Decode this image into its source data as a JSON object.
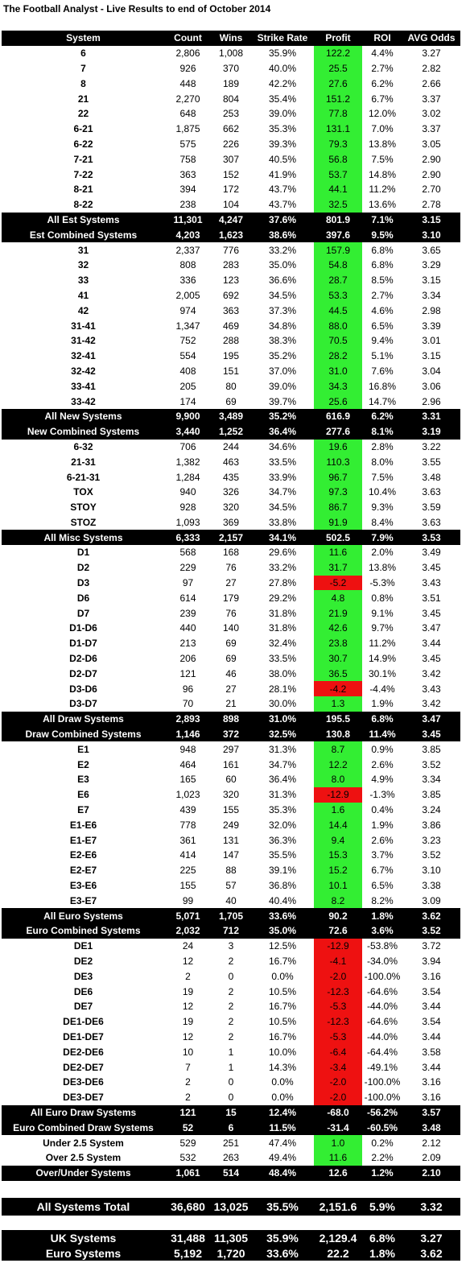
{
  "title": "The Football Analyst - Live Results to end of October 2014",
  "header": [
    "System",
    "Count",
    "Wins",
    "Strike Rate",
    "Profit",
    "ROI",
    "AVG Odds"
  ],
  "sections": [
    {
      "rows": [
        [
          "6",
          "2,806",
          "1,008",
          "35.9%",
          "122.2",
          "4.4%",
          "3.27"
        ],
        [
          "7",
          "926",
          "370",
          "40.0%",
          "25.5",
          "2.7%",
          "2.82"
        ],
        [
          "8",
          "448",
          "189",
          "42.2%",
          "27.6",
          "6.2%",
          "2.66"
        ],
        [
          "21",
          "2,270",
          "804",
          "35.4%",
          "151.2",
          "6.7%",
          "3.37"
        ],
        [
          "22",
          "648",
          "253",
          "39.0%",
          "77.8",
          "12.0%",
          "3.02"
        ],
        [
          "6-21",
          "1,875",
          "662",
          "35.3%",
          "131.1",
          "7.0%",
          "3.37"
        ],
        [
          "6-22",
          "575",
          "226",
          "39.3%",
          "79.3",
          "13.8%",
          "3.05"
        ],
        [
          "7-21",
          "758",
          "307",
          "40.5%",
          "56.8",
          "7.5%",
          "2.90"
        ],
        [
          "7-22",
          "363",
          "152",
          "41.9%",
          "53.7",
          "14.8%",
          "2.90"
        ],
        [
          "8-21",
          "394",
          "172",
          "43.7%",
          "44.1",
          "11.2%",
          "2.70"
        ],
        [
          "8-22",
          "238",
          "104",
          "43.7%",
          "32.5",
          "13.6%",
          "2.78"
        ]
      ],
      "totals": [
        [
          "All Est Systems",
          "11,301",
          "4,247",
          "37.6%",
          "801.9",
          "7.1%",
          "3.15"
        ],
        [
          "Est Combined Systems",
          "4,203",
          "1,623",
          "38.6%",
          "397.6",
          "9.5%",
          "3.10"
        ]
      ]
    },
    {
      "rows": [
        [
          "31",
          "2,337",
          "776",
          "33.2%",
          "157.9",
          "6.8%",
          "3.65"
        ],
        [
          "32",
          "808",
          "283",
          "35.0%",
          "54.8",
          "6.8%",
          "3.29"
        ],
        [
          "33",
          "336",
          "123",
          "36.6%",
          "28.7",
          "8.5%",
          "3.15"
        ],
        [
          "41",
          "2,005",
          "692",
          "34.5%",
          "53.3",
          "2.7%",
          "3.34"
        ],
        [
          "42",
          "974",
          "363",
          "37.3%",
          "44.5",
          "4.6%",
          "2.98"
        ],
        [
          "31-41",
          "1,347",
          "469",
          "34.8%",
          "88.0",
          "6.5%",
          "3.39"
        ],
        [
          "31-42",
          "752",
          "288",
          "38.3%",
          "70.5",
          "9.4%",
          "3.01"
        ],
        [
          "32-41",
          "554",
          "195",
          "35.2%",
          "28.2",
          "5.1%",
          "3.15"
        ],
        [
          "32-42",
          "408",
          "151",
          "37.0%",
          "31.0",
          "7.6%",
          "3.04"
        ],
        [
          "33-41",
          "205",
          "80",
          "39.0%",
          "34.3",
          "16.8%",
          "3.06"
        ],
        [
          "33-42",
          "174",
          "69",
          "39.7%",
          "25.6",
          "14.7%",
          "2.96"
        ]
      ],
      "totals": [
        [
          "All New Systems",
          "9,900",
          "3,489",
          "35.2%",
          "616.9",
          "6.2%",
          "3.31"
        ],
        [
          "New Combined Systems",
          "3,440",
          "1,252",
          "36.4%",
          "277.6",
          "8.1%",
          "3.19"
        ]
      ]
    },
    {
      "rows": [
        [
          "6-32",
          "706",
          "244",
          "34.6%",
          "19.6",
          "2.8%",
          "3.22"
        ],
        [
          "21-31",
          "1,382",
          "463",
          "33.5%",
          "110.3",
          "8.0%",
          "3.55"
        ],
        [
          "6-21-31",
          "1,284",
          "435",
          "33.9%",
          "96.7",
          "7.5%",
          "3.48"
        ],
        [
          "TOX",
          "940",
          "326",
          "34.7%",
          "97.3",
          "10.4%",
          "3.63"
        ],
        [
          "STOY",
          "928",
          "320",
          "34.5%",
          "86.7",
          "9.3%",
          "3.59"
        ],
        [
          "STOZ",
          "1,093",
          "369",
          "33.8%",
          "91.9",
          "8.4%",
          "3.63"
        ]
      ],
      "totals": [
        [
          "All Misc Systems",
          "6,333",
          "2,157",
          "34.1%",
          "502.5",
          "7.9%",
          "3.53"
        ]
      ]
    },
    {
      "rows": [
        [
          "D1",
          "568",
          "168",
          "29.6%",
          "11.6",
          "2.0%",
          "3.49"
        ],
        [
          "D2",
          "229",
          "76",
          "33.2%",
          "31.7",
          "13.8%",
          "3.45"
        ],
        [
          "D3",
          "97",
          "27",
          "27.8%",
          "-5.2",
          "-5.3%",
          "3.43"
        ],
        [
          "D6",
          "614",
          "179",
          "29.2%",
          "4.8",
          "0.8%",
          "3.51"
        ],
        [
          "D7",
          "239",
          "76",
          "31.8%",
          "21.9",
          "9.1%",
          "3.45"
        ],
        [
          "D1-D6",
          "440",
          "140",
          "31.8%",
          "42.6",
          "9.7%",
          "3.47"
        ],
        [
          "D1-D7",
          "213",
          "69",
          "32.4%",
          "23.8",
          "11.2%",
          "3.44"
        ],
        [
          "D2-D6",
          "206",
          "69",
          "33.5%",
          "30.7",
          "14.9%",
          "3.45"
        ],
        [
          "D2-D7",
          "121",
          "46",
          "38.0%",
          "36.5",
          "30.1%",
          "3.42"
        ],
        [
          "D3-D6",
          "96",
          "27",
          "28.1%",
          "-4.2",
          "-4.4%",
          "3.43"
        ],
        [
          "D3-D7",
          "70",
          "21",
          "30.0%",
          "1.3",
          "1.9%",
          "3.42"
        ]
      ],
      "totals": [
        [
          "All Draw Systems",
          "2,893",
          "898",
          "31.0%",
          "195.5",
          "6.8%",
          "3.47"
        ],
        [
          "Draw Combined Systems",
          "1,146",
          "372",
          "32.5%",
          "130.8",
          "11.4%",
          "3.45"
        ]
      ]
    },
    {
      "rows": [
        [
          "E1",
          "948",
          "297",
          "31.3%",
          "8.7",
          "0.9%",
          "3.85"
        ],
        [
          "E2",
          "464",
          "161",
          "34.7%",
          "12.2",
          "2.6%",
          "3.52"
        ],
        [
          "E3",
          "165",
          "60",
          "36.4%",
          "8.0",
          "4.9%",
          "3.34"
        ],
        [
          "E6",
          "1,023",
          "320",
          "31.3%",
          "-12.9",
          "-1.3%",
          "3.85"
        ],
        [
          "E7",
          "439",
          "155",
          "35.3%",
          "1.6",
          "0.4%",
          "3.24"
        ],
        [
          "E1-E6",
          "778",
          "249",
          "32.0%",
          "14.4",
          "1.9%",
          "3.86"
        ],
        [
          "E1-E7",
          "361",
          "131",
          "36.3%",
          "9.4",
          "2.6%",
          "3.23"
        ],
        [
          "E2-E6",
          "414",
          "147",
          "35.5%",
          "15.3",
          "3.7%",
          "3.52"
        ],
        [
          "E2-E7",
          "225",
          "88",
          "39.1%",
          "15.2",
          "6.7%",
          "3.10"
        ],
        [
          "E3-E6",
          "155",
          "57",
          "36.8%",
          "10.1",
          "6.5%",
          "3.38"
        ],
        [
          "E3-E7",
          "99",
          "40",
          "40.4%",
          "8.2",
          "8.2%",
          "3.09"
        ]
      ],
      "totals": [
        [
          "All Euro Systems",
          "5,071",
          "1,705",
          "33.6%",
          "90.2",
          "1.8%",
          "3.62"
        ],
        [
          "Euro Combined Systems",
          "2,032",
          "712",
          "35.0%",
          "72.6",
          "3.6%",
          "3.52"
        ]
      ]
    },
    {
      "rows": [
        [
          "DE1",
          "24",
          "3",
          "12.5%",
          "-12.9",
          "-53.8%",
          "3.72"
        ],
        [
          "DE2",
          "12",
          "2",
          "16.7%",
          "-4.1",
          "-34.0%",
          "3.94"
        ],
        [
          "DE3",
          "2",
          "0",
          "0.0%",
          "-2.0",
          "-100.0%",
          "3.16"
        ],
        [
          "DE6",
          "19",
          "2",
          "10.5%",
          "-12.3",
          "-64.6%",
          "3.54"
        ],
        [
          "DE7",
          "12",
          "2",
          "16.7%",
          "-5.3",
          "-44.0%",
          "3.44"
        ],
        [
          "DE1-DE6",
          "19",
          "2",
          "10.5%",
          "-12.3",
          "-64.6%",
          "3.54"
        ],
        [
          "DE1-DE7",
          "12",
          "2",
          "16.7%",
          "-5.3",
          "-44.0%",
          "3.44"
        ],
        [
          "DE2-DE6",
          "10",
          "1",
          "10.0%",
          "-6.4",
          "-64.4%",
          "3.58"
        ],
        [
          "DE2-DE7",
          "7",
          "1",
          "14.3%",
          "-3.4",
          "-49.1%",
          "3.44"
        ],
        [
          "DE3-DE6",
          "2",
          "0",
          "0.0%",
          "-2.0",
          "-100.0%",
          "3.16"
        ],
        [
          "DE3-DE7",
          "2",
          "0",
          "0.0%",
          "-2.0",
          "-100.0%",
          "3.16"
        ]
      ],
      "totals": [
        [
          "All Euro Draw Systems",
          "121",
          "15",
          "12.4%",
          "-68.0",
          "-56.2%",
          "3.57"
        ],
        [
          "Euro Combined Draw Systems",
          "52",
          "6",
          "11.5%",
          "-31.4",
          "-60.5%",
          "3.48"
        ]
      ]
    },
    {
      "rows": [
        [
          "Under 2.5 System",
          "529",
          "251",
          "47.4%",
          "1.0",
          "0.2%",
          "2.12"
        ],
        [
          "Over 2.5 System",
          "532",
          "263",
          "49.4%",
          "11.6",
          "2.2%",
          "2.09"
        ]
      ],
      "totals": [
        [
          "Over/Under Systems",
          "1,061",
          "514",
          "48.4%",
          "12.6",
          "1.2%",
          "2.10"
        ]
      ]
    }
  ],
  "grand_total": [
    "All Systems Total",
    "36,680",
    "13,025",
    "35.5%",
    "2,151.6",
    "5.9%",
    "3.32"
  ],
  "split": [
    [
      "UK Systems",
      "31,488",
      "11,305",
      "35.9%",
      "2,129.4",
      "6.8%",
      "3.27"
    ],
    [
      "Euro Systems",
      "5,192",
      "1,720",
      "33.6%",
      "22.2",
      "1.8%",
      "3.62"
    ]
  ]
}
